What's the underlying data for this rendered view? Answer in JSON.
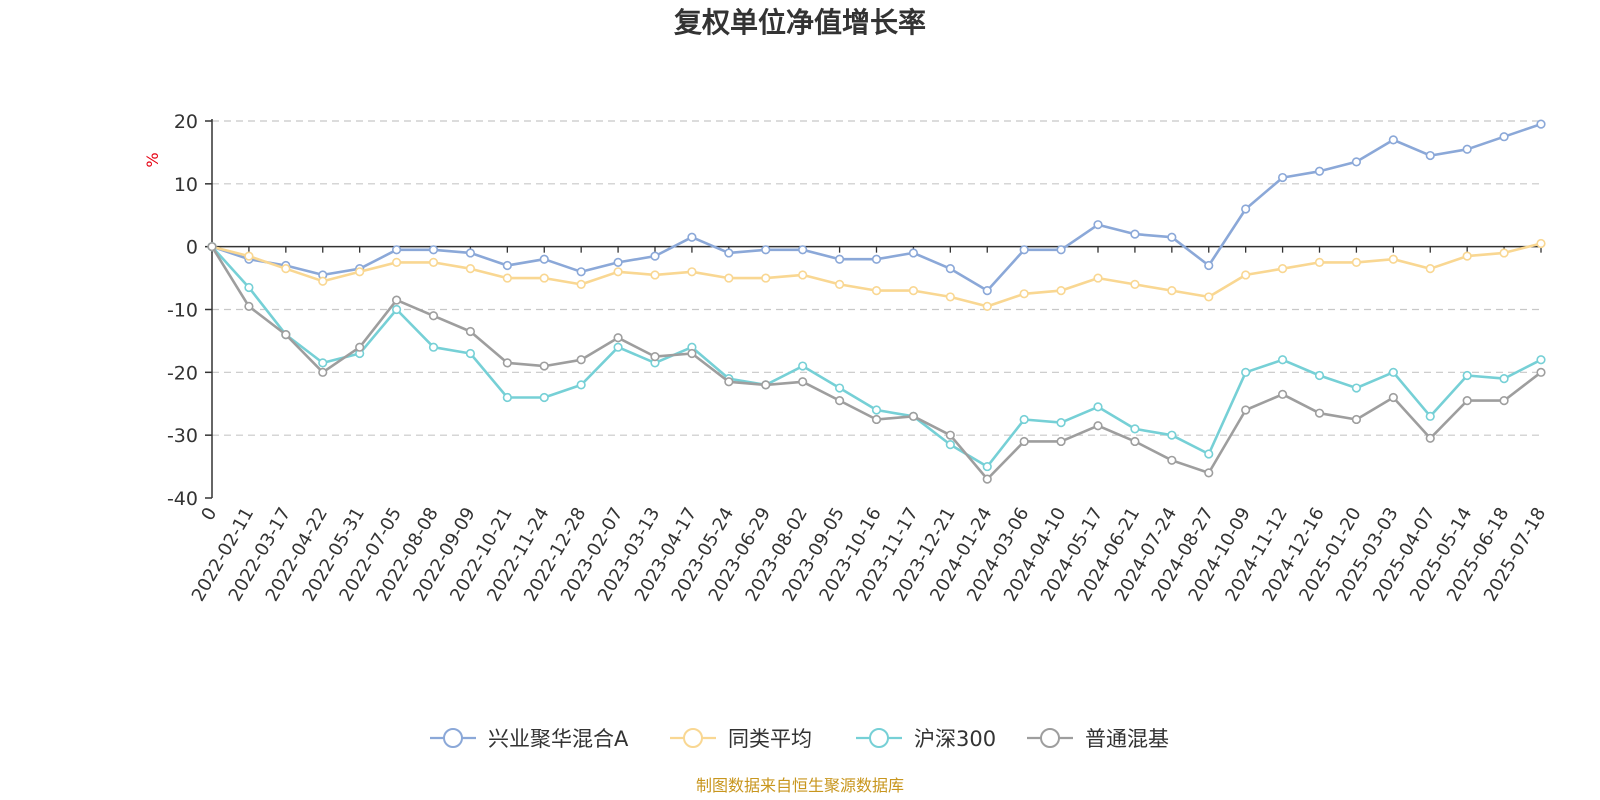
{
  "chart_data": {
    "type": "line",
    "title": "复权单位净值增长率",
    "ylabel": "%",
    "ylim": [
      -40,
      20
    ],
    "yticks": [
      -40,
      -30,
      -20,
      -10,
      0,
      10,
      20
    ],
    "grid": true,
    "legend_position": "bottom",
    "source": "制图数据来自恒生聚源数据库",
    "colors": {
      "unit": "#e60012",
      "source": "#c8961e",
      "grid": "#c8c8c8",
      "axis": "#333333"
    },
    "x": [
      "0",
      "2022-02-11",
      "2022-03-17",
      "2022-04-22",
      "2022-05-31",
      "2022-07-05",
      "2022-08-08",
      "2022-09-09",
      "2022-10-21",
      "2022-11-24",
      "2022-12-28",
      "2023-02-07",
      "2023-03-13",
      "2023-04-17",
      "2023-05-24",
      "2023-06-29",
      "2023-08-02",
      "2023-09-05",
      "2023-10-16",
      "2023-11-17",
      "2023-12-21",
      "2024-01-24",
      "2024-03-06",
      "2024-04-10",
      "2024-05-17",
      "2024-06-21",
      "2024-07-24",
      "2024-08-27",
      "2024-10-09",
      "2024-11-12",
      "2024-12-16",
      "2025-01-20",
      "2025-03-03",
      "2025-04-07",
      "2025-05-14",
      "2025-06-18",
      "2025-07-18"
    ],
    "series": [
      {
        "name": "兴业聚华混合A",
        "color": "#8ba8d8",
        "values": [
          0,
          -2,
          -3,
          -4.5,
          -3.5,
          -0.5,
          -0.5,
          -1,
          -3,
          -2,
          -4,
          -2.5,
          -1.5,
          1.5,
          -1,
          -0.5,
          -0.5,
          -2,
          -2,
          -1,
          -3.5,
          -7,
          -0.5,
          -0.5,
          3.5,
          2,
          1.5,
          -3,
          6,
          11,
          12,
          13.5,
          17,
          14.5,
          15.5,
          17.5,
          19.5
        ]
      },
      {
        "name": "同类平均",
        "color": "#f9d792",
        "values": [
          0,
          -1.5,
          -3.5,
          -5.5,
          -4,
          -2.5,
          -2.5,
          -3.5,
          -5,
          -5,
          -6,
          -4,
          -4.5,
          -4,
          -5,
          -5,
          -4.5,
          -6,
          -7,
          -7,
          -8,
          -9.5,
          -7.5,
          -7,
          -5,
          -6,
          -7,
          -8,
          -4.5,
          -3.5,
          -2.5,
          -2.5,
          -2,
          -3.5,
          -1.5,
          -1,
          0.5
        ]
      },
      {
        "name": "沪深300",
        "color": "#76d0d6",
        "values": [
          0,
          -6.5,
          -14,
          -18.5,
          -17,
          -10,
          -16,
          -17,
          -24,
          -24,
          -22,
          -16,
          -18.5,
          -16,
          -21,
          -22,
          -19,
          -22.5,
          -26,
          -27,
          -31.5,
          -35,
          -27.5,
          -28,
          -25.5,
          -29,
          -30,
          -33,
          -20,
          -18,
          -20.5,
          -22.5,
          -20,
          -27,
          -20.5,
          -21,
          -18
        ]
      },
      {
        "name": "普通混基",
        "color": "#9e9e9e",
        "values": [
          0,
          -9.5,
          -14,
          -20,
          -16,
          -8.5,
          -11,
          -13.5,
          -18.5,
          -19,
          -18,
          -14.5,
          -17.5,
          -17,
          -21.5,
          -22,
          -21.5,
          -24.5,
          -27.5,
          -27,
          -30,
          -37,
          -31,
          -31,
          -28.5,
          -31,
          -34,
          -36,
          -26,
          -23.5,
          -26.5,
          -27.5,
          -24,
          -30.5,
          -24.5,
          -24.5,
          -20
        ]
      }
    ]
  }
}
